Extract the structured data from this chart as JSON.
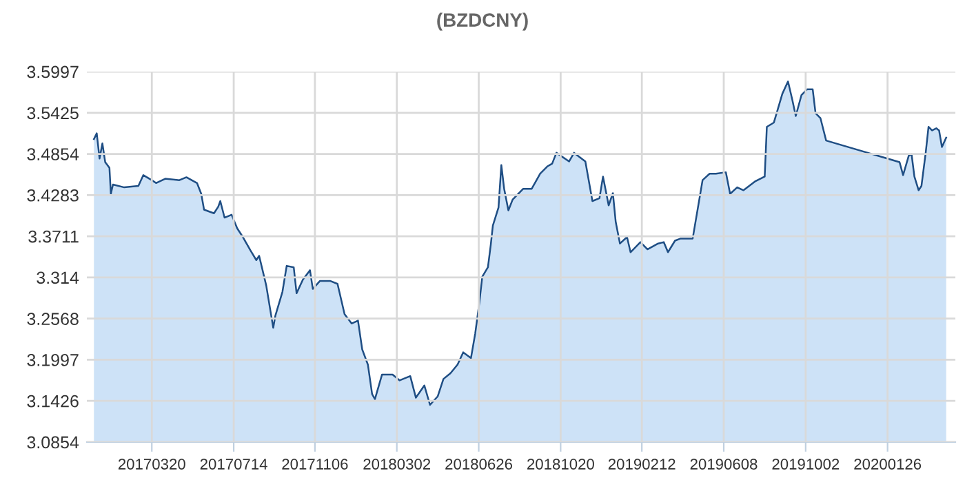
{
  "chart_data": {
    "type": "area",
    "title": "(BZDCNY)",
    "x": [
      "2016-12-28",
      "2017-01-01",
      "2017-01-05",
      "2017-01-09",
      "2017-01-13",
      "2017-01-19",
      "2017-01-21",
      "2017-01-24",
      "2017-02-09",
      "2017-03-01",
      "2017-03-08",
      "2017-03-20",
      "2017-03-26",
      "2017-04-08",
      "2017-04-28",
      "2017-05-08",
      "2017-05-23",
      "2017-05-29",
      "2017-06-02",
      "2017-06-16",
      "2017-06-22",
      "2017-06-25",
      "2017-07-01",
      "2017-07-11",
      "2017-07-19",
      "2017-07-27",
      "2017-08-07",
      "2017-08-15",
      "2017-08-19",
      "2017-08-29",
      "2017-09-08",
      "2017-09-11",
      "2017-09-21",
      "2017-09-27",
      "2017-10-07",
      "2017-10-11",
      "2017-10-20",
      "2017-10-30",
      "2017-11-03",
      "2017-11-13",
      "2017-11-28",
      "2017-12-08",
      "2017-12-18",
      "2017-12-28",
      "2018-01-06",
      "2018-01-12",
      "2018-01-20",
      "2018-01-26",
      "2018-01-30",
      "2018-02-09",
      "2018-02-24",
      "2018-03-06",
      "2018-03-21",
      "2018-03-29",
      "2018-04-10",
      "2018-04-18",
      "2018-04-29",
      "2018-05-07",
      "2018-05-17",
      "2018-05-27",
      "2018-06-04",
      "2018-06-15",
      "2018-06-21",
      "2018-06-27",
      "2018-07-01",
      "2018-07-09",
      "2018-07-13",
      "2018-07-16",
      "2018-07-24",
      "2018-07-28",
      "2018-08-01",
      "2018-08-07",
      "2018-08-13",
      "2018-08-28",
      "2018-09-09",
      "2018-09-21",
      "2018-10-01",
      "2018-10-08",
      "2018-10-14",
      "2018-11-01",
      "2018-11-08",
      "2018-11-24",
      "2018-12-04",
      "2018-12-14",
      "2018-12-19",
      "2018-12-27",
      "2019-01-02",
      "2019-01-06",
      "2019-01-12",
      "2019-01-22",
      "2019-01-27",
      "2019-02-10",
      "2019-02-20",
      "2019-03-07",
      "2019-03-15",
      "2019-03-21",
      "2019-03-31",
      "2019-04-08",
      "2019-04-25",
      "2019-05-09",
      "2019-05-19",
      "2019-05-28",
      "2019-06-11",
      "2019-06-17",
      "2019-06-27",
      "2019-07-06",
      "2019-07-22",
      "2019-08-05",
      "2019-08-08",
      "2019-08-18",
      "2019-08-30",
      "2019-09-07",
      "2019-09-13",
      "2019-09-18",
      "2019-09-26",
      "2019-10-04",
      "2019-10-12",
      "2019-10-16",
      "2019-10-23",
      "2019-10-31",
      "2020-02-12",
      "2020-02-17",
      "2020-02-25",
      "2020-02-29",
      "2020-03-04",
      "2020-03-10",
      "2020-03-14",
      "2020-03-20",
      "2020-03-24",
      "2020-03-29",
      "2020-04-04",
      "2020-04-08",
      "2020-04-12",
      "2020-04-18"
    ],
    "series": [
      {
        "color": "#1f4e84",
        "values": [
          3.506,
          3.514,
          3.479,
          3.5,
          3.474,
          3.466,
          3.43,
          3.443,
          3.439,
          3.441,
          3.456,
          3.449,
          3.445,
          3.451,
          3.449,
          3.453,
          3.445,
          3.43,
          3.408,
          3.403,
          3.412,
          3.42,
          3.397,
          3.401,
          3.382,
          3.37,
          3.351,
          3.338,
          3.344,
          3.303,
          3.244,
          3.261,
          3.294,
          3.33,
          3.328,
          3.292,
          3.311,
          3.324,
          3.298,
          3.309,
          3.309,
          3.305,
          3.263,
          3.25,
          3.254,
          3.214,
          3.193,
          3.152,
          3.145,
          3.179,
          3.179,
          3.171,
          3.177,
          3.147,
          3.164,
          3.137,
          3.149,
          3.173,
          3.181,
          3.193,
          3.21,
          3.202,
          3.236,
          3.28,
          3.315,
          3.328,
          3.359,
          3.386,
          3.411,
          3.47,
          3.437,
          3.407,
          3.422,
          3.437,
          3.437,
          3.458,
          3.468,
          3.472,
          3.487,
          3.475,
          3.487,
          3.475,
          3.42,
          3.424,
          3.454,
          3.414,
          3.431,
          3.391,
          3.361,
          3.37,
          3.349,
          3.363,
          3.353,
          3.361,
          3.363,
          3.349,
          3.365,
          3.368,
          3.368,
          3.449,
          3.458,
          3.458,
          3.46,
          3.43,
          3.439,
          3.435,
          3.447,
          3.454,
          3.523,
          3.529,
          3.569,
          3.586,
          3.561,
          3.538,
          3.567,
          3.575,
          3.575,
          3.542,
          3.535,
          3.504,
          3.474,
          3.456,
          3.483,
          3.485,
          3.454,
          3.435,
          3.441,
          3.487,
          3.523,
          3.518,
          3.521,
          3.518,
          3.495,
          3.508
        ]
      }
    ],
    "xlim": [
      "2016-12-18",
      "2020-05-01"
    ],
    "xticks": [
      {
        "value": "2017-03-20",
        "label": "20170320"
      },
      {
        "value": "2017-07-14",
        "label": "20170714"
      },
      {
        "value": "2017-11-06",
        "label": "20171106"
      },
      {
        "value": "2018-03-02",
        "label": "20180302"
      },
      {
        "value": "2018-06-26",
        "label": "20180626"
      },
      {
        "value": "2018-10-20",
        "label": "20181020"
      },
      {
        "value": "2019-02-12",
        "label": "20190212"
      },
      {
        "value": "2019-06-08",
        "label": "20190608"
      },
      {
        "value": "2019-10-02",
        "label": "20191002"
      },
      {
        "value": "2020-01-26",
        "label": "20200126"
      }
    ],
    "ylim": [
      3.0854,
      3.5997
    ],
    "yticks": [
      3.0854,
      3.1426,
      3.1997,
      3.2568,
      3.314,
      3.3711,
      3.4283,
      3.4854,
      3.5425,
      3.5997
    ],
    "grid": true,
    "legend": false
  }
}
